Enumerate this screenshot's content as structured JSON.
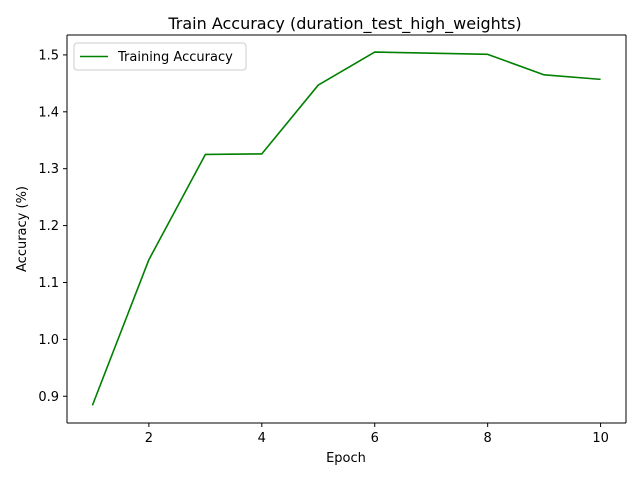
{
  "chart_data": {
    "type": "line",
    "title": "Train Accuracy (duration_test_high_weights)",
    "xlabel": "Epoch",
    "ylabel": "Accuracy (%)",
    "xlim": [
      0.55,
      10.45
    ],
    "ylim": [
      0.853,
      1.535
    ],
    "xticks": [
      2,
      4,
      6,
      8,
      10
    ],
    "yticks": [
      0.9,
      1.0,
      1.1,
      1.2,
      1.3,
      1.4,
      1.5
    ],
    "xtick_labels": [
      "2",
      "4",
      "6",
      "8",
      "10"
    ],
    "ytick_labels": [
      "0.9",
      "1.0",
      "1.1",
      "1.2",
      "1.3",
      "1.4",
      "1.5"
    ],
    "grid": false,
    "legend": "upper-left",
    "series": [
      {
        "name": "Training Accuracy",
        "color": "#008000",
        "x": [
          1,
          2,
          3,
          4,
          5,
          6,
          7,
          8,
          9,
          10
        ],
        "y": [
          0.884,
          1.14,
          1.325,
          1.326,
          1.447,
          1.505,
          1.503,
          1.501,
          1.465,
          1.457
        ]
      }
    ]
  }
}
